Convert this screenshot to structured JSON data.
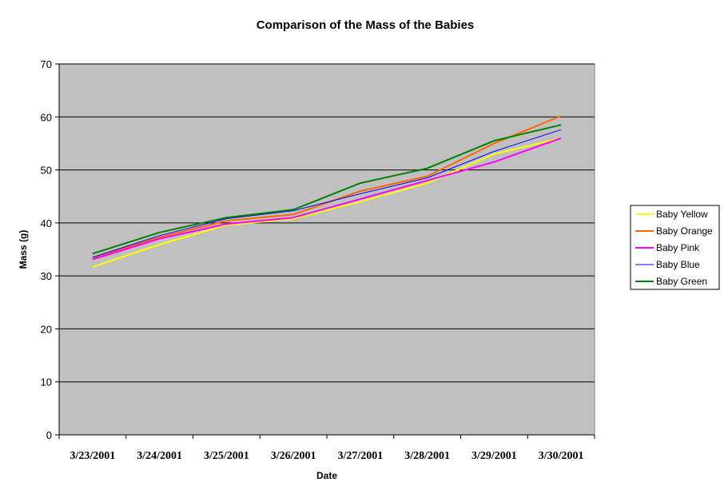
{
  "chart_data": {
    "type": "line",
    "title": "Comparison of the Mass of the Babies",
    "xlabel": "Date",
    "ylabel": "Mass (g)",
    "categories": [
      "3/23/2001",
      "3/24/2001",
      "3/25/2001",
      "3/26/2001",
      "3/27/2001",
      "3/28/2001",
      "3/29/2001",
      "3/30/2001"
    ],
    "ylim": [
      0,
      70
    ],
    "yticks": [
      0,
      10,
      20,
      30,
      40,
      50,
      60,
      70
    ],
    "grid": true,
    "legend_position": "right",
    "plot_background": "#c0c0c0",
    "series": [
      {
        "name": "Baby Yellow",
        "color": "#ffff00",
        "values": [
          31.7,
          35.9,
          39.6,
          40.8,
          44.0,
          47.5,
          53.0,
          56.0
        ]
      },
      {
        "name": "Baby Orange",
        "color": "#ff6600",
        "values": [
          33.4,
          37.3,
          40.4,
          41.6,
          46.0,
          48.8,
          55.0,
          60.2
        ]
      },
      {
        "name": "Baby Pink",
        "color": "#ff00ff",
        "values": [
          33.1,
          37.0,
          39.8,
          41.0,
          44.5,
          48.0,
          51.5,
          56.0
        ]
      },
      {
        "name": "Baby Blue",
        "color": "#0000ff",
        "values": [
          33.5,
          37.6,
          40.8,
          42.3,
          45.5,
          48.5,
          53.5,
          57.6
        ]
      },
      {
        "name": "Baby Green",
        "color": "#008000",
        "values": [
          34.2,
          38.2,
          41.0,
          42.5,
          47.5,
          50.3,
          55.5,
          58.5
        ]
      }
    ]
  }
}
